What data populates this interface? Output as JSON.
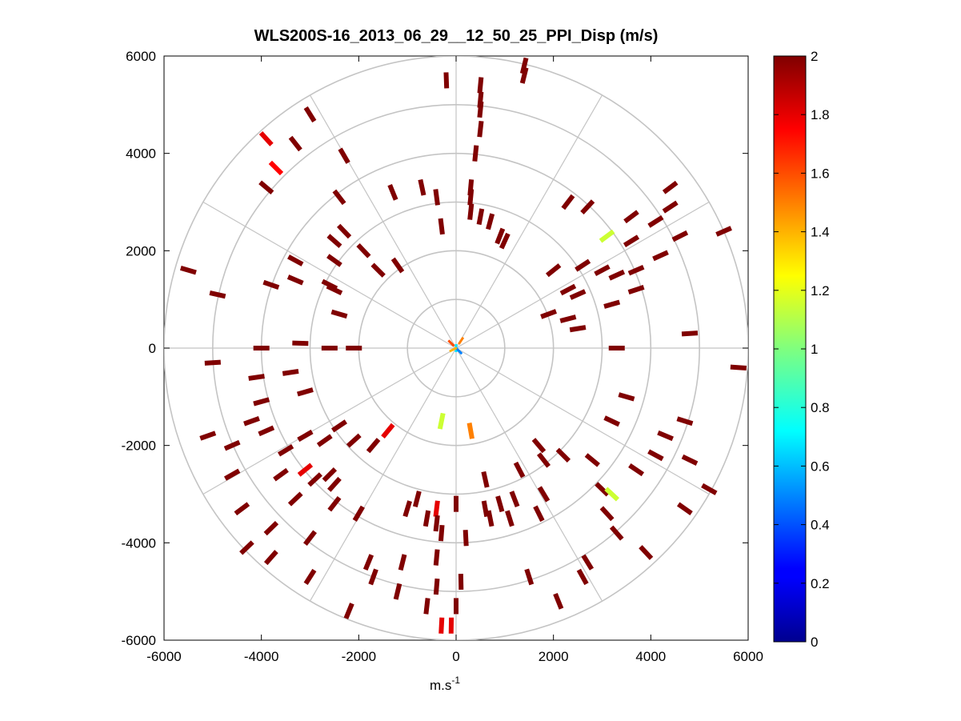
{
  "chart_data": {
    "type": "polar_ppi_scatter",
    "title": "WLS200S-16_2013_06_29__12_50_25_PPI_Disp (m/s)",
    "xlabel": "m.s",
    "xlabel_superscript": "-1",
    "ylabel": "",
    "xlim": [
      -6000,
      6000
    ],
    "ylim": [
      -6000,
      6000
    ],
    "x_ticks": [
      -6000,
      -4000,
      -2000,
      0,
      2000,
      4000,
      6000
    ],
    "x_tick_labels": [
      "-6000",
      "-4000",
      "-2000",
      "0",
      "2000",
      "4000",
      "6000"
    ],
    "y_ticks": [
      6000,
      4000,
      2000,
      0,
      -2000,
      -4000,
      -6000
    ],
    "y_tick_labels": [
      "6000",
      "4000",
      "2000",
      "0",
      "-2000",
      "-4000",
      "-6000"
    ],
    "polar_grid": {
      "ring_radii": [
        1000,
        2000,
        3000,
        4000,
        5000,
        6000
      ],
      "spoke_angles_deg": [
        0,
        30,
        60,
        90,
        120,
        150,
        180,
        210,
        240,
        270,
        300,
        330
      ]
    },
    "colorbar": {
      "min": 0,
      "max": 2,
      "colormap": "jet",
      "ticks": [
        2,
        1.8,
        1.6,
        1.4,
        1.2,
        1,
        0.8,
        0.6,
        0.4,
        0.2,
        0
      ],
      "tick_labels": [
        "2",
        "1.8",
        "1.6",
        "1.4",
        "1.2",
        "1",
        "0.8",
        "0.6",
        "0.4",
        "0.2",
        "0"
      ],
      "placement": "right"
    },
    "points": [
      {
        "x": -200,
        "y": 5500,
        "v": 2
      },
      {
        "x": 500,
        "y": 5400,
        "v": 2
      },
      {
        "x": 1400,
        "y": 5800,
        "v": 2
      },
      {
        "x": 1400,
        "y": 5600,
        "v": 2
      },
      {
        "x": 500,
        "y": 5100,
        "v": 2
      },
      {
        "x": 500,
        "y": 4900,
        "v": 2
      },
      {
        "x": 500,
        "y": 4500,
        "v": 2
      },
      {
        "x": 400,
        "y": 4000,
        "v": 2
      },
      {
        "x": -3000,
        "y": 4800,
        "v": 2
      },
      {
        "x": -3900,
        "y": 4300,
        "v": 1.8
      },
      {
        "x": -3700,
        "y": 3700,
        "v": 1.75
      },
      {
        "x": -3900,
        "y": 3300,
        "v": 2
      },
      {
        "x": -3300,
        "y": 4200,
        "v": 2
      },
      {
        "x": -2300,
        "y": 3950,
        "v": 2
      },
      {
        "x": -2400,
        "y": 3100,
        "v": 2
      },
      {
        "x": -1300,
        "y": 3200,
        "v": 2
      },
      {
        "x": -700,
        "y": 3300,
        "v": 2
      },
      {
        "x": -400,
        "y": 3100,
        "v": 2
      },
      {
        "x": 300,
        "y": 3300,
        "v": 2
      },
      {
        "x": 300,
        "y": 3100,
        "v": 2
      },
      {
        "x": 300,
        "y": 2800,
        "v": 2
      },
      {
        "x": 500,
        "y": 2700,
        "v": 2
      },
      {
        "x": 700,
        "y": 2600,
        "v": 2
      },
      {
        "x": -300,
        "y": 2500,
        "v": 2
      },
      {
        "x": 900,
        "y": 2300,
        "v": 2
      },
      {
        "x": 1000,
        "y": 2200,
        "v": 2
      },
      {
        "x": 2300,
        "y": 3000,
        "v": 2
      },
      {
        "x": 2700,
        "y": 2900,
        "v": 2
      },
      {
        "x": 3600,
        "y": 2700,
        "v": 2
      },
      {
        "x": 4100,
        "y": 2600,
        "v": 2
      },
      {
        "x": 4400,
        "y": 2900,
        "v": 2
      },
      {
        "x": 4400,
        "y": 3300,
        "v": 2
      },
      {
        "x": 4600,
        "y": 2300,
        "v": 2
      },
      {
        "x": 5500,
        "y": 2400,
        "v": 2
      },
      {
        "x": 3100,
        "y": 2300,
        "v": 1.15
      },
      {
        "x": 3600,
        "y": 2200,
        "v": 2
      },
      {
        "x": 4200,
        "y": 1900,
        "v": 2
      },
      {
        "x": 2000,
        "y": 1600,
        "v": 2
      },
      {
        "x": 2600,
        "y": 1700,
        "v": 2
      },
      {
        "x": 3000,
        "y": 1600,
        "v": 2
      },
      {
        "x": 3300,
        "y": 1500,
        "v": 2
      },
      {
        "x": 3700,
        "y": 1600,
        "v": 2
      },
      {
        "x": 3700,
        "y": 1200,
        "v": 2
      },
      {
        "x": 2300,
        "y": 1200,
        "v": 2
      },
      {
        "x": 2500,
        "y": 1100,
        "v": 2
      },
      {
        "x": 3200,
        "y": 900,
        "v": 2
      },
      {
        "x": 4800,
        "y": 300,
        "v": 2
      },
      {
        "x": 2300,
        "y": 600,
        "v": 2
      },
      {
        "x": 2500,
        "y": 400,
        "v": 2
      },
      {
        "x": 1900,
        "y": 700,
        "v": 2
      },
      {
        "x": 3300,
        "y": 0,
        "v": 2
      },
      {
        "x": 5800,
        "y": -400,
        "v": 2
      },
      {
        "x": -2300,
        "y": 2400,
        "v": 2
      },
      {
        "x": -2500,
        "y": 2200,
        "v": 2
      },
      {
        "x": -2500,
        "y": 1800,
        "v": 2
      },
      {
        "x": -1900,
        "y": 2000,
        "v": 2
      },
      {
        "x": -1600,
        "y": 1600,
        "v": 2
      },
      {
        "x": -1200,
        "y": 1700,
        "v": 2
      },
      {
        "x": -2600,
        "y": 1300,
        "v": 2
      },
      {
        "x": -2500,
        "y": 1200,
        "v": 2
      },
      {
        "x": -3300,
        "y": 1800,
        "v": 2
      },
      {
        "x": -3300,
        "y": 1400,
        "v": 2
      },
      {
        "x": -3800,
        "y": 1300,
        "v": 2
      },
      {
        "x": -5500,
        "y": 1600,
        "v": 2
      },
      {
        "x": -4900,
        "y": 1100,
        "v": 2
      },
      {
        "x": -2400,
        "y": 700,
        "v": 2
      },
      {
        "x": -3200,
        "y": 100,
        "v": 2
      },
      {
        "x": -2600,
        "y": 0,
        "v": 2
      },
      {
        "x": -2100,
        "y": 0,
        "v": 2
      },
      {
        "x": -4000,
        "y": 0,
        "v": 2
      },
      {
        "x": -5000,
        "y": -300,
        "v": 2
      },
      {
        "x": -3400,
        "y": -500,
        "v": 2
      },
      {
        "x": -3100,
        "y": -900,
        "v": 2
      },
      {
        "x": -4100,
        "y": -600,
        "v": 2
      },
      {
        "x": -4000,
        "y": -1100,
        "v": 2
      },
      {
        "x": -4200,
        "y": -1500,
        "v": 2
      },
      {
        "x": -5100,
        "y": -1800,
        "v": 2
      },
      {
        "x": -4600,
        "y": -2000,
        "v": 2
      },
      {
        "x": -3900,
        "y": -1700,
        "v": 2
      },
      {
        "x": -3100,
        "y": -1800,
        "v": 2
      },
      {
        "x": -2700,
        "y": -1900,
        "v": 2
      },
      {
        "x": -2400,
        "y": -1600,
        "v": 2
      },
      {
        "x": -2100,
        "y": -1900,
        "v": 2
      },
      {
        "x": -1700,
        "y": -2000,
        "v": 2
      },
      {
        "x": -1400,
        "y": -1700,
        "v": 1.8
      },
      {
        "x": -3500,
        "y": -2100,
        "v": 2
      },
      {
        "x": -3600,
        "y": -2600,
        "v": 2
      },
      {
        "x": -3100,
        "y": -2500,
        "v": 1.8
      },
      {
        "x": -2900,
        "y": -2700,
        "v": 2
      },
      {
        "x": -2600,
        "y": -2600,
        "v": 2
      },
      {
        "x": -2500,
        "y": -2800,
        "v": 2
      },
      {
        "x": -3300,
        "y": -3100,
        "v": 2
      },
      {
        "x": -2500,
        "y": -3200,
        "v": 2
      },
      {
        "x": -2000,
        "y": -3400,
        "v": 2
      },
      {
        "x": -4600,
        "y": -2600,
        "v": 2
      },
      {
        "x": -4400,
        "y": -3300,
        "v": 2
      },
      {
        "x": -3800,
        "y": -3700,
        "v": 2
      },
      {
        "x": -3000,
        "y": -3900,
        "v": 2
      },
      {
        "x": -4300,
        "y": -4100,
        "v": 2
      },
      {
        "x": -3800,
        "y": -4300,
        "v": 2
      },
      {
        "x": -1800,
        "y": -4400,
        "v": 2
      },
      {
        "x": -1700,
        "y": -4700,
        "v": 2
      },
      {
        "x": -1000,
        "y": -3300,
        "v": 2
      },
      {
        "x": -800,
        "y": -3100,
        "v": 2
      },
      {
        "x": -600,
        "y": -3500,
        "v": 2
      },
      {
        "x": -400,
        "y": -3300,
        "v": 1.8
      },
      {
        "x": -400,
        "y": -3600,
        "v": 2
      },
      {
        "x": -300,
        "y": -3800,
        "v": 2
      },
      {
        "x": 0,
        "y": -3200,
        "v": 2
      },
      {
        "x": 200,
        "y": -3900,
        "v": 2
      },
      {
        "x": -400,
        "y": -4300,
        "v": 2
      },
      {
        "x": 600,
        "y": -3300,
        "v": 2
      },
      {
        "x": 900,
        "y": -3200,
        "v": 2
      },
      {
        "x": 1200,
        "y": -3100,
        "v": 2
      },
      {
        "x": 1800,
        "y": -3000,
        "v": 2
      },
      {
        "x": 700,
        "y": -3500,
        "v": 2
      },
      {
        "x": 1100,
        "y": -3500,
        "v": 2
      },
      {
        "x": 1700,
        "y": -3400,
        "v": 2
      },
      {
        "x": 600,
        "y": -2700,
        "v": 2
      },
      {
        "x": 1300,
        "y": -2500,
        "v": 2
      },
      {
        "x": 1800,
        "y": -2300,
        "v": 2
      },
      {
        "x": 1700,
        "y": -2000,
        "v": 2
      },
      {
        "x": 2200,
        "y": -2200,
        "v": 2
      },
      {
        "x": 2800,
        "y": -2300,
        "v": 2
      },
      {
        "x": 3000,
        "y": -2900,
        "v": 2
      },
      {
        "x": 3200,
        "y": -3000,
        "v": 1.15
      },
      {
        "x": 3100,
        "y": -3400,
        "v": 2
      },
      {
        "x": 3700,
        "y": -2500,
        "v": 2
      },
      {
        "x": 4100,
        "y": -2200,
        "v": 2
      },
      {
        "x": 4300,
        "y": -1800,
        "v": 2
      },
      {
        "x": 4700,
        "y": -1500,
        "v": 2
      },
      {
        "x": 3200,
        "y": -1500,
        "v": 2
      },
      {
        "x": 3500,
        "y": -1000,
        "v": 2
      },
      {
        "x": 4800,
        "y": -2300,
        "v": 2
      },
      {
        "x": 5200,
        "y": -2900,
        "v": 2
      },
      {
        "x": 4700,
        "y": -3300,
        "v": 2
      },
      {
        "x": 3300,
        "y": -3800,
        "v": 2
      },
      {
        "x": 3900,
        "y": -4200,
        "v": 2
      },
      {
        "x": 2600,
        "y": -4700,
        "v": 2
      },
      {
        "x": 2700,
        "y": -4400,
        "v": 2
      },
      {
        "x": 1500,
        "y": -4700,
        "v": 2
      },
      {
        "x": 2100,
        "y": -5200,
        "v": 2
      },
      {
        "x": 100,
        "y": -4800,
        "v": 2
      },
      {
        "x": -400,
        "y": -4900,
        "v": 2
      },
      {
        "x": -1200,
        "y": -5000,
        "v": 2
      },
      {
        "x": -2200,
        "y": -5400,
        "v": 2
      },
      {
        "x": -600,
        "y": -5300,
        "v": 2
      },
      {
        "x": 0,
        "y": -5300,
        "v": 2
      },
      {
        "x": -300,
        "y": -5700,
        "v": 1.8
      },
      {
        "x": -100,
        "y": -5700,
        "v": 1.8
      },
      {
        "x": -1100,
        "y": -4400,
        "v": 2
      },
      {
        "x": -3000,
        "y": -4700,
        "v": 2
      },
      {
        "x": -300,
        "y": -1500,
        "v": 1.15
      },
      {
        "x": 300,
        "y": -1700,
        "v": 1.5
      },
      {
        "x": 100,
        "y": 150,
        "v": 1.5
      },
      {
        "x": -100,
        "y": 100,
        "v": 1.6
      },
      {
        "x": 0,
        "y": 0,
        "v": 0.7
      },
      {
        "x": 60,
        "y": -60,
        "v": 0.5
      },
      {
        "x": -60,
        "y": -30,
        "v": 1.4
      }
    ]
  }
}
